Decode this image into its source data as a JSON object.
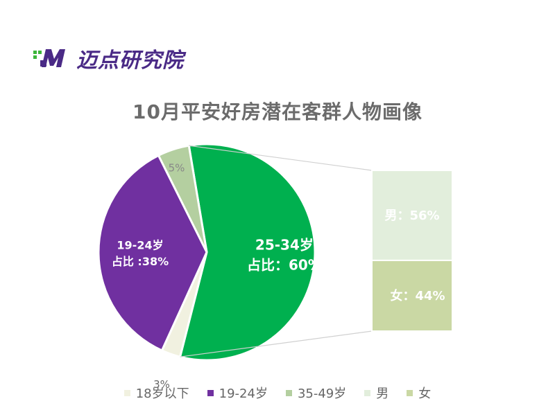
{
  "brand": {
    "name": "迈点研究院",
    "logo_letter": "M",
    "colors": {
      "green": "#3cb53a",
      "purple": "#4a2a86"
    }
  },
  "chart_data": {
    "type": "pie",
    "title": "10月平安好房潜在客群人物画像",
    "slices": [
      {
        "key": "25-34",
        "label": "25-34岁",
        "line2": "占比：60%",
        "value": 60,
        "color": "#00b04f"
      },
      {
        "key": "18-under",
        "label": "",
        "line2": "3%",
        "value": 3,
        "color": "#f1f1e0"
      },
      {
        "key": "19-24",
        "label": "19-24岁",
        "line2": "占比 :38%",
        "value": 38,
        "color": "#7030a0"
      },
      {
        "key": "35-49",
        "label": "",
        "line2": "5%",
        "value": 5,
        "color": "#b4cfa0"
      }
    ],
    "breakdown": [
      {
        "label": "男：56%",
        "value": 56,
        "color": "#e2eedc"
      },
      {
        "label": "女：44%",
        "value": 44,
        "color": "#cad8a4"
      }
    ],
    "legend": [
      {
        "label": "18岁以下",
        "color": "#f1f1e0"
      },
      {
        "label": "19-24岁",
        "color": "#7030a0"
      },
      {
        "label": "35-49岁",
        "color": "#b4cfa0"
      },
      {
        "label": "男",
        "color": "#e2eedc"
      },
      {
        "label": "女",
        "color": "#cad8a4"
      }
    ],
    "legend_position": "bottom"
  }
}
